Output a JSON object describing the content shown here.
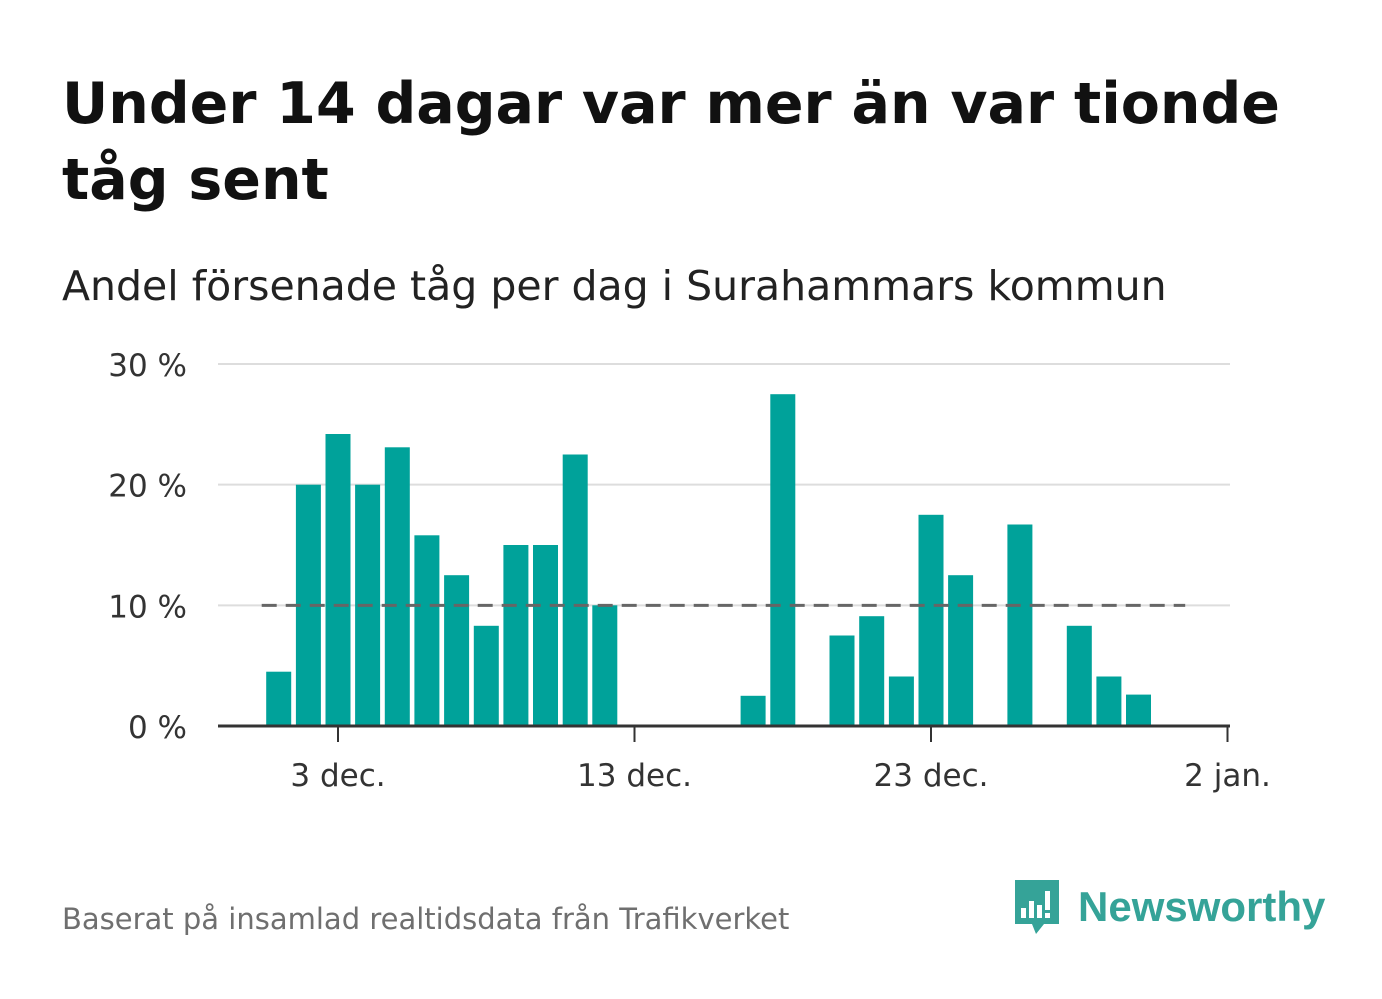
{
  "title": "Under 14 dagar var mer än var tionde tåg sent",
  "subtitle": "Andel försenade tåg per dag i Surahammars kommun",
  "footer": "Baserat på insamlad realtidsdata från Trafikverket",
  "brand": {
    "name": "Newsworthy",
    "icon": "chart-speech-bubble-icon",
    "color": "#35a398"
  },
  "colors": {
    "bar": "#00a29a",
    "reference_line": "#666666",
    "grid": "#dddddd",
    "axis": "#333333"
  },
  "chart_data": {
    "type": "bar",
    "title": "Under 14 dagar var mer än var tionde tåg sent",
    "subtitle": "Andel försenade tåg per dag i Surahammars kommun",
    "xlabel": "",
    "ylabel": "",
    "x_ticks": [
      {
        "date": "2023-12-03",
        "label": "3 dec."
      },
      {
        "date": "2023-12-13",
        "label": "13 dec."
      },
      {
        "date": "2023-12-23",
        "label": "23 dec."
      },
      {
        "date": "2024-01-02",
        "label": "2 jan."
      }
    ],
    "y_ticks": [
      {
        "value": 0,
        "label": "0 %"
      },
      {
        "value": 10,
        "label": "10 %"
      },
      {
        "value": 20,
        "label": "20 %"
      },
      {
        "value": 30,
        "label": "30 %"
      }
    ],
    "ylim": [
      0,
      30
    ],
    "xlim": [
      "2023-11-29",
      "2024-01-02"
    ],
    "grid": true,
    "reference_line": {
      "value": 10,
      "from": "2023-12-01",
      "to": "2023-12-31",
      "style": "dashed"
    },
    "bars": [
      {
        "date": "2023-12-01",
        "value": 4.5
      },
      {
        "date": "2023-12-02",
        "value": 20.0
      },
      {
        "date": "2023-12-03",
        "value": 24.2
      },
      {
        "date": "2023-12-04",
        "value": 20.0
      },
      {
        "date": "2023-12-05",
        "value": 23.1
      },
      {
        "date": "2023-12-06",
        "value": 15.8
      },
      {
        "date": "2023-12-07",
        "value": 12.5
      },
      {
        "date": "2023-12-08",
        "value": 8.3
      },
      {
        "date": "2023-12-09",
        "value": 15.0
      },
      {
        "date": "2023-12-10",
        "value": 15.0
      },
      {
        "date": "2023-12-11",
        "value": 22.5
      },
      {
        "date": "2023-12-12",
        "value": 10.0
      },
      {
        "date": "2023-12-17",
        "value": 2.5
      },
      {
        "date": "2023-12-18",
        "value": 27.5
      },
      {
        "date": "2023-12-20",
        "value": 7.5
      },
      {
        "date": "2023-12-21",
        "value": 9.1
      },
      {
        "date": "2023-12-22",
        "value": 4.1
      },
      {
        "date": "2023-12-23",
        "value": 17.5
      },
      {
        "date": "2023-12-24",
        "value": 12.5
      },
      {
        "date": "2023-12-26",
        "value": 16.7
      },
      {
        "date": "2023-12-28",
        "value": 8.3
      },
      {
        "date": "2023-12-29",
        "value": 4.1
      },
      {
        "date": "2023-12-30",
        "value": 2.6
      }
    ]
  }
}
